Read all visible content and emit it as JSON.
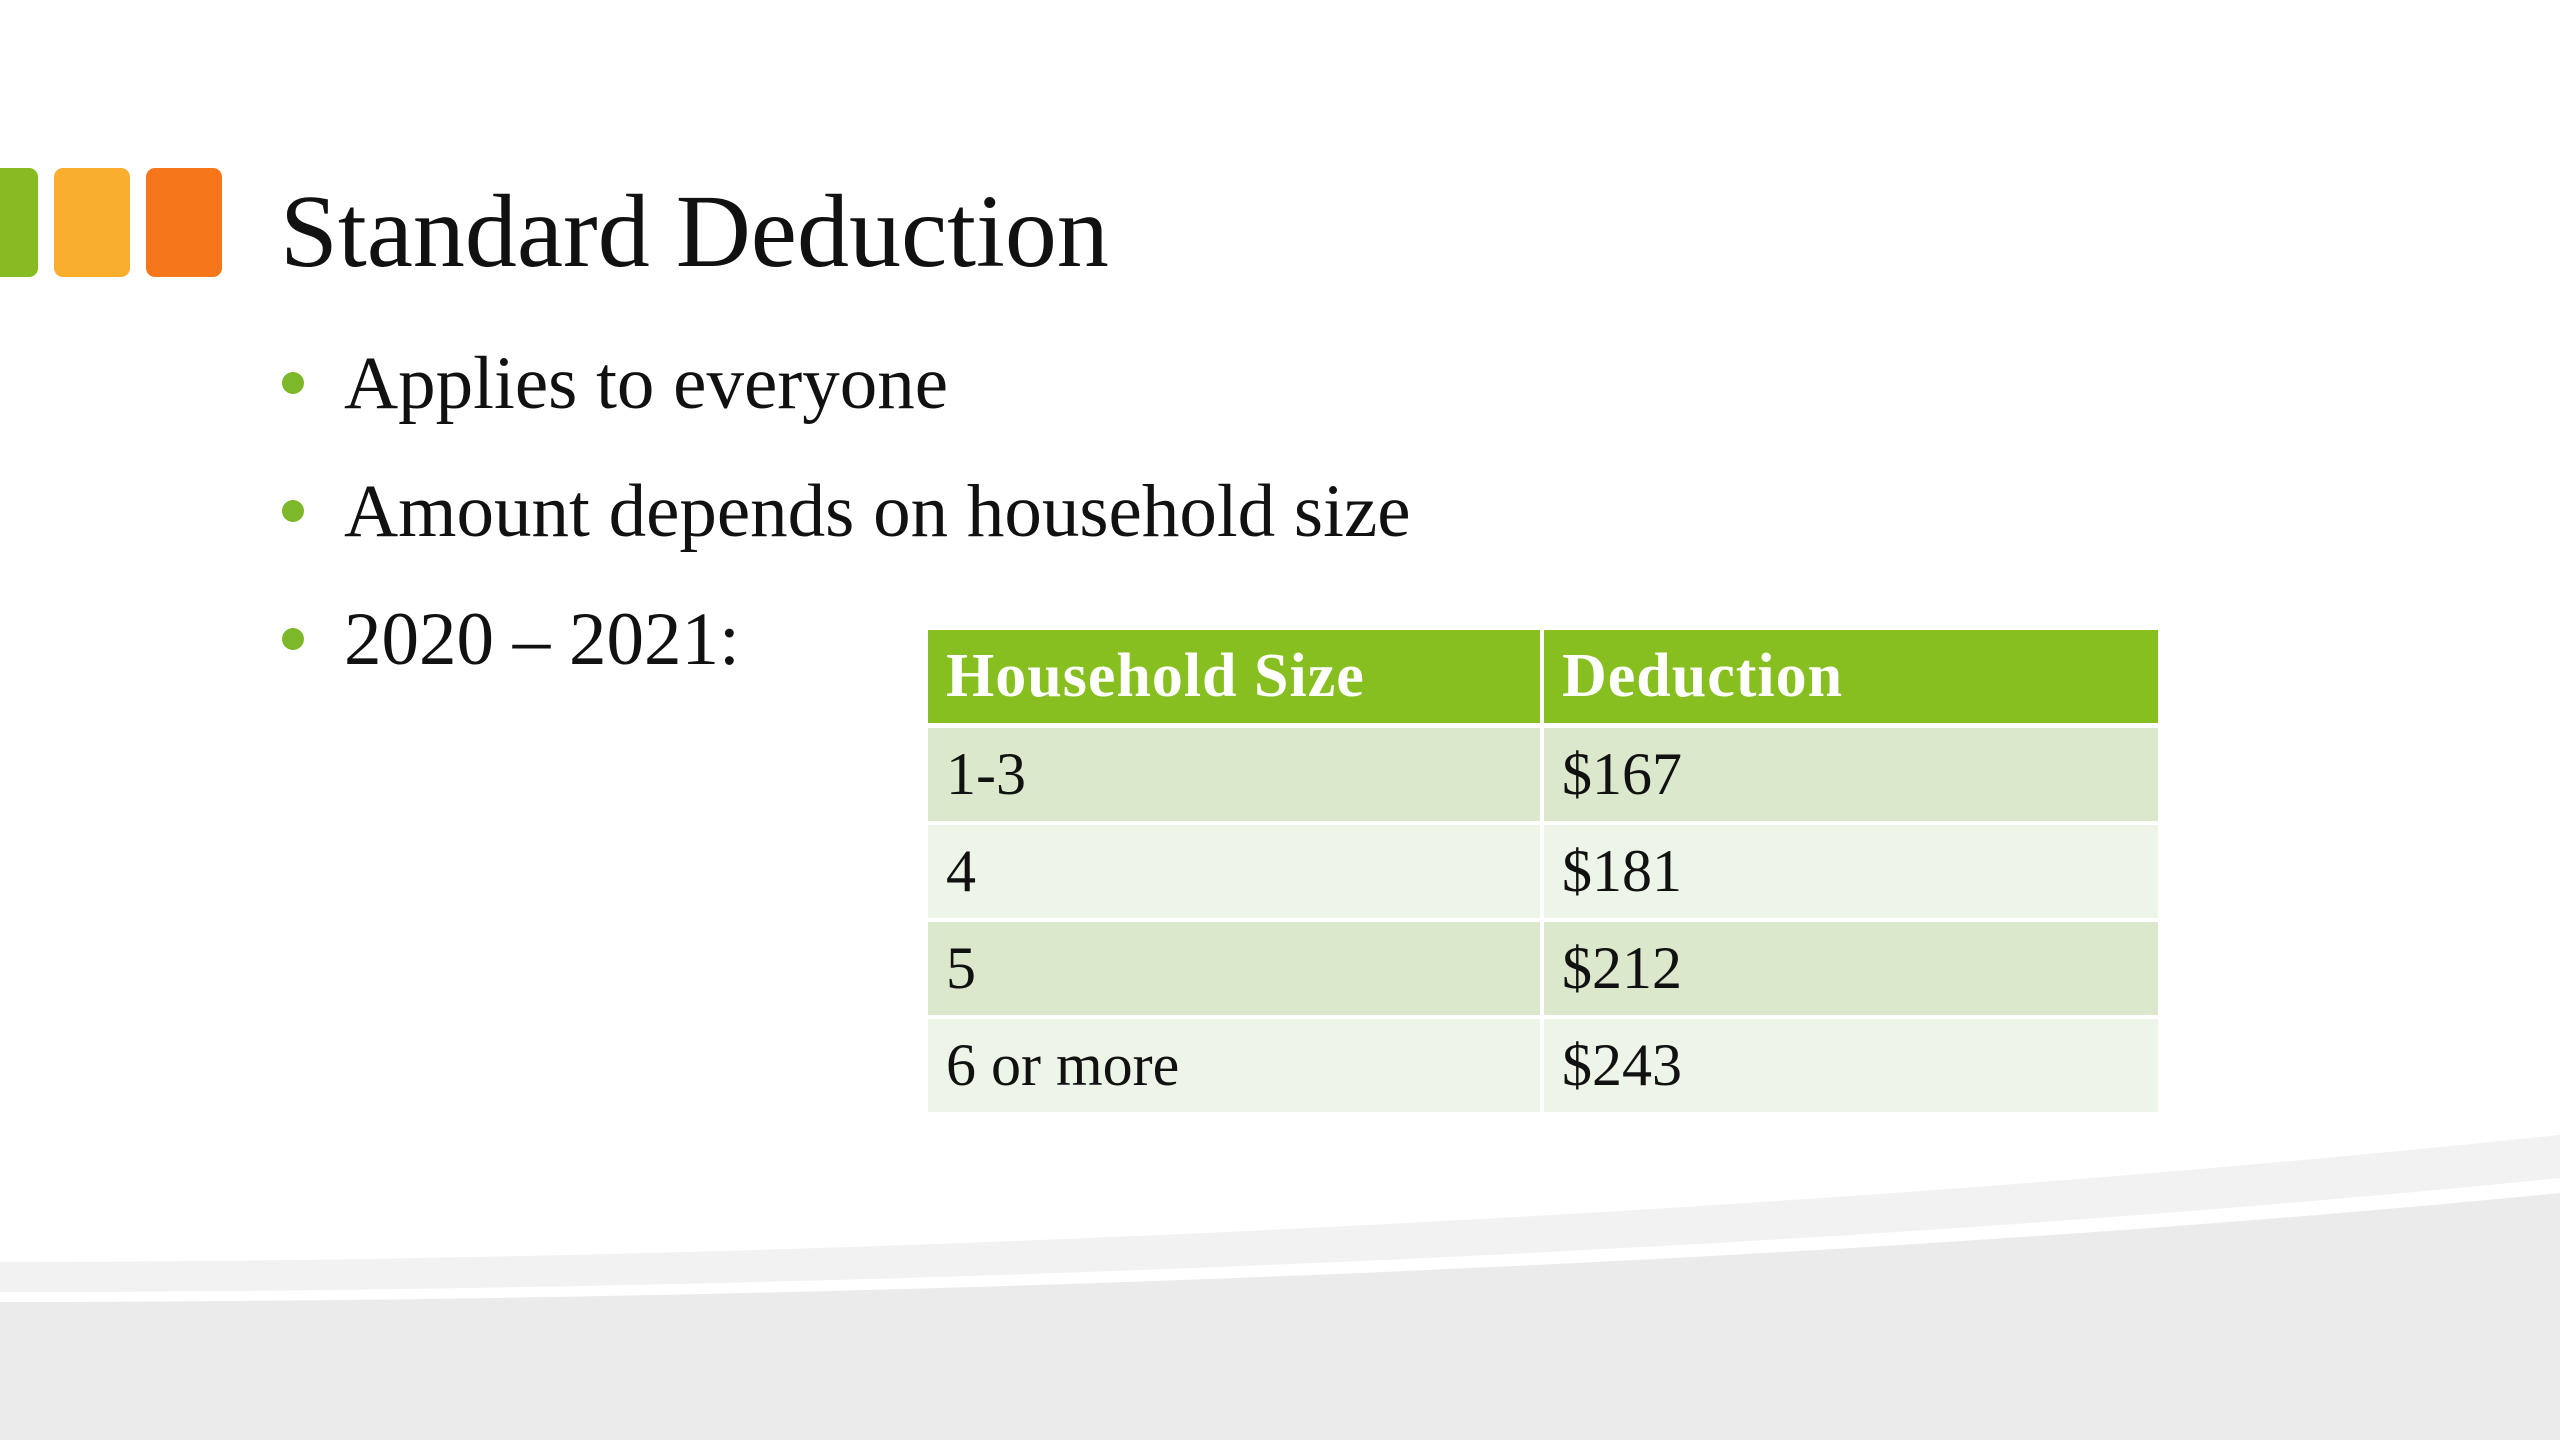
{
  "slide": {
    "title": "Standard Deduction",
    "accent_colors": {
      "green": "#86bb22",
      "yellow": "#f9ae2d",
      "orange": "#f6771a"
    },
    "bullets": [
      {
        "text": "Applies to everyone"
      },
      {
        "text": "Amount depends on household size"
      },
      {
        "text": "2020 – 2021:"
      }
    ],
    "table": {
      "header_color": "#86bf1f",
      "headers": [
        "Household Size",
        "Deduction"
      ],
      "rows": [
        [
          "1-3",
          "$167"
        ],
        [
          "4",
          "$181"
        ],
        [
          "5",
          "$212"
        ],
        [
          "6 or more",
          "$243"
        ]
      ]
    }
  }
}
